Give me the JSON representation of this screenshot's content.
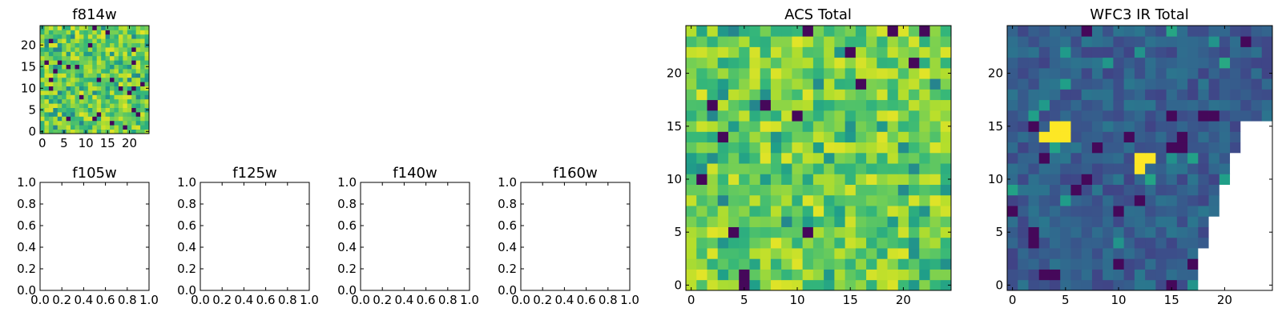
{
  "figure": {
    "description_colormap": "viridis",
    "colors": {
      "nan": "#ffffff",
      "axis": "#000000"
    }
  },
  "chart_data": [
    {
      "type": "heatmap",
      "title": "f814w",
      "grid_shape": [
        25,
        25
      ],
      "xlim": [
        -0.5,
        24.5
      ],
      "ylim": [
        -0.5,
        24.5
      ],
      "xticks": [
        0,
        5,
        10,
        15,
        20
      ],
      "xtick_labels": [
        "0",
        "5",
        "10",
        "15",
        "20"
      ],
      "yticks": [
        0,
        5,
        10,
        15,
        20
      ],
      "ytick_labels": [
        "0",
        "5",
        "10",
        "15",
        "20"
      ],
      "value_range": [
        0,
        1
      ],
      "seed": 814,
      "profile": "acs",
      "nan_region": "none",
      "hotspots": []
    },
    {
      "type": "heatmap",
      "title": "f105w",
      "empty": true,
      "xlim": [
        0,
        1
      ],
      "ylim": [
        0,
        1
      ],
      "xticks": [
        0,
        0.2,
        0.4,
        0.6,
        0.8,
        1.0
      ],
      "xtick_labels": [
        "0.0",
        "0.2",
        "0.4",
        "0.6",
        "0.8",
        "1.0"
      ],
      "yticks": [
        0,
        0.2,
        0.4,
        0.6,
        0.8,
        1.0
      ],
      "ytick_labels": [
        "0.0",
        "0.2",
        "0.4",
        "0.6",
        "0.8",
        "1.0"
      ]
    },
    {
      "type": "heatmap",
      "title": "f125w",
      "empty": true,
      "xlim": [
        0,
        1
      ],
      "ylim": [
        0,
        1
      ],
      "xticks": [
        0,
        0.2,
        0.4,
        0.6,
        0.8,
        1.0
      ],
      "xtick_labels": [
        "0.0",
        "0.2",
        "0.4",
        "0.6",
        "0.8",
        "1.0"
      ],
      "yticks": [
        0,
        0.2,
        0.4,
        0.6,
        0.8,
        1.0
      ],
      "ytick_labels": [
        "0.0",
        "0.2",
        "0.4",
        "0.6",
        "0.8",
        "1.0"
      ]
    },
    {
      "type": "heatmap",
      "title": "f140w",
      "empty": true,
      "xlim": [
        0,
        1
      ],
      "ylim": [
        0,
        1
      ],
      "xticks": [
        0,
        0.2,
        0.4,
        0.6,
        0.8,
        1.0
      ],
      "xtick_labels": [
        "0.0",
        "0.2",
        "0.4",
        "0.6",
        "0.8",
        "1.0"
      ],
      "yticks": [
        0,
        0.2,
        0.4,
        0.6,
        0.8,
        1.0
      ],
      "ytick_labels": [
        "0.0",
        "0.2",
        "0.4",
        "0.6",
        "0.8",
        "1.0"
      ]
    },
    {
      "type": "heatmap",
      "title": "f160w",
      "empty": true,
      "xlim": [
        0,
        1
      ],
      "ylim": [
        0,
        1
      ],
      "xticks": [
        0,
        0.2,
        0.4,
        0.6,
        0.8,
        1.0
      ],
      "xtick_labels": [
        "0.0",
        "0.2",
        "0.4",
        "0.6",
        "0.8",
        "1.0"
      ],
      "yticks": [
        0,
        0.2,
        0.4,
        0.6,
        0.8,
        1.0
      ],
      "ytick_labels": [
        "0.0",
        "0.2",
        "0.4",
        "0.6",
        "0.8",
        "1.0"
      ]
    },
    {
      "type": "heatmap",
      "title": "ACS Total",
      "grid_shape": [
        25,
        25
      ],
      "xlim": [
        -0.5,
        24.5
      ],
      "ylim": [
        -0.5,
        24.5
      ],
      "xticks": [
        0,
        5,
        10,
        15,
        20
      ],
      "xtick_labels": [
        "0",
        "5",
        "10",
        "15",
        "20"
      ],
      "yticks": [
        0,
        5,
        10,
        15,
        20
      ],
      "ytick_labels": [
        "0",
        "5",
        "10",
        "15",
        "20"
      ],
      "value_range": [
        0,
        1
      ],
      "seed": 2718,
      "profile": "acs",
      "nan_region": "none",
      "hotspots": []
    },
    {
      "type": "heatmap",
      "title": "WFC3 IR Total",
      "grid_shape": [
        25,
        25
      ],
      "xlim": [
        -0.5,
        24.5
      ],
      "ylim": [
        -0.5,
        24.5
      ],
      "xticks": [
        0,
        5,
        10,
        15,
        20
      ],
      "xtick_labels": [
        "0",
        "5",
        "10",
        "15",
        "20"
      ],
      "yticks": [
        0,
        5,
        10,
        15,
        20
      ],
      "ytick_labels": [
        "0",
        "5",
        "10",
        "15",
        "20"
      ],
      "value_range": [
        0,
        1
      ],
      "seed": 3141,
      "profile": "ir",
      "nan_region": "lower-right",
      "hotspots": [
        [
          4,
          15
        ],
        [
          5,
          15
        ],
        [
          4,
          14
        ],
        [
          5,
          14
        ],
        [
          3,
          14
        ],
        [
          12,
          12
        ],
        [
          13,
          12
        ],
        [
          12,
          11
        ]
      ]
    }
  ]
}
